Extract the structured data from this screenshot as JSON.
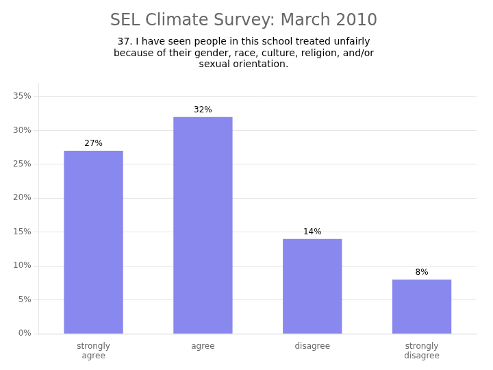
{
  "chart_data": {
    "type": "bar",
    "title": "SEL Climate Survey: March 2010",
    "subtitle": "37. I have seen people in this school treated unfairly\nbecause of their gender, race, culture, religion, and/or\nsexual orientation.",
    "categories": [
      "strongly\nagree",
      "agree",
      "disagree",
      "strongly\ndisagree"
    ],
    "values": [
      27,
      32,
      14,
      8
    ],
    "value_labels": [
      "27%",
      "32%",
      "14%",
      "8%"
    ],
    "data_labels": true,
    "color": "#8888ee",
    "ylim": [
      0,
      37
    ],
    "yticks": [
      {
        "value": 0,
        "label": "0%"
      },
      {
        "value": 5,
        "label": "5%"
      },
      {
        "value": 10,
        "label": "10%"
      },
      {
        "value": 15,
        "label": "15%"
      },
      {
        "value": 20,
        "label": "20%"
      },
      {
        "value": 25,
        "label": "25%"
      },
      {
        "value": 30,
        "label": "30%"
      },
      {
        "value": 35,
        "label": "35%"
      }
    ],
    "grid": true
  }
}
